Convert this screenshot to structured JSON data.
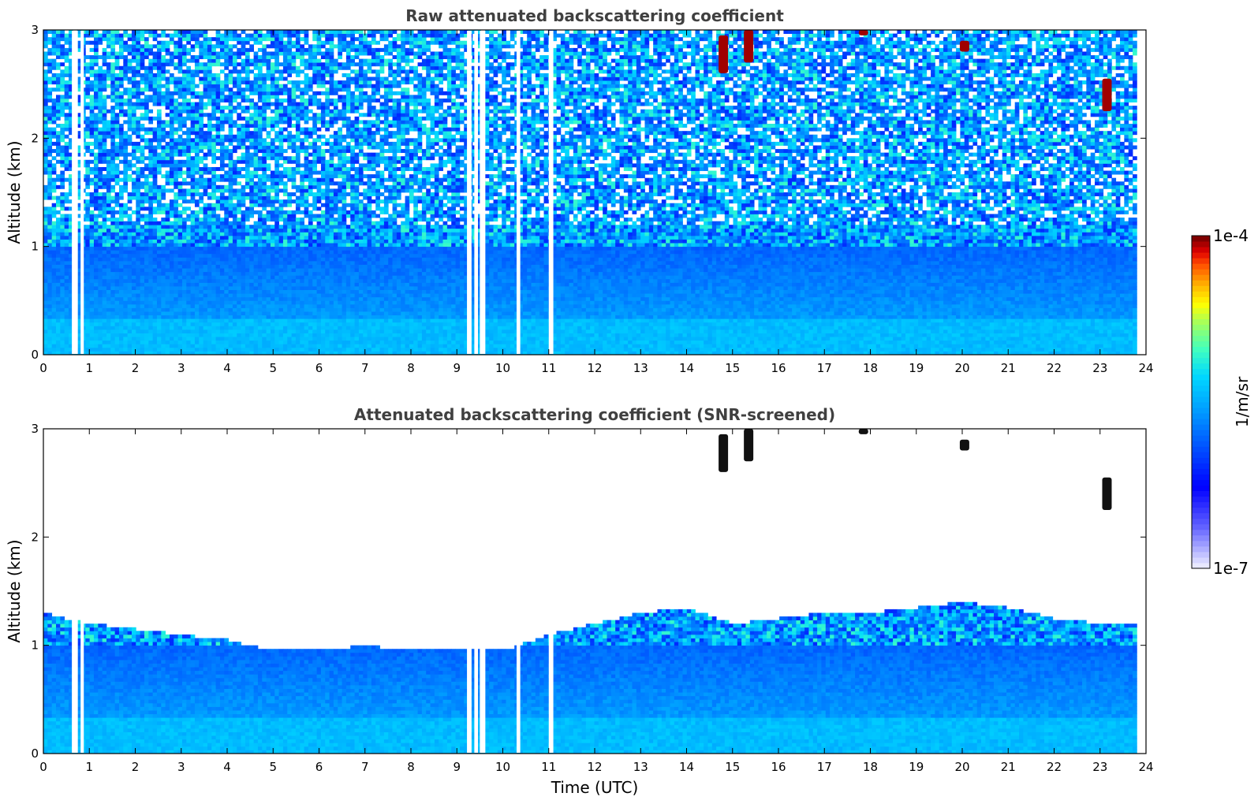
{
  "chart_data": [
    {
      "type": "heatmap",
      "title": "Raw attenuated backscattering coefficient",
      "xlabel": "",
      "ylabel": "Altitude (km)",
      "xlim": [
        0,
        24
      ],
      "ylim": [
        0,
        3
      ],
      "x_ticks": [
        "0",
        "1",
        "2",
        "3",
        "4",
        "5",
        "6",
        "7",
        "8",
        "9",
        "10",
        "11",
        "12",
        "13",
        "14",
        "15",
        "16",
        "17",
        "18",
        "19",
        "20",
        "21",
        "22",
        "23",
        "24"
      ],
      "y_ticks": [
        "0",
        "1",
        "2",
        "3"
      ],
      "data_end_hour": 23.8,
      "data_gaps_hours": [
        [
          0.62,
          0.75
        ],
        [
          0.81,
          0.88
        ],
        [
          9.22,
          9.32
        ],
        [
          9.38,
          9.46
        ],
        [
          9.5,
          9.62
        ],
        [
          10.3,
          10.38
        ],
        [
          11.0,
          11.1
        ]
      ],
      "cloud_patches": [
        {
          "t": 14.8,
          "h_min": 2.6,
          "h_max": 2.95
        },
        {
          "t": 15.35,
          "h_min": 2.7,
          "h_max": 3.0
        },
        {
          "t": 17.85,
          "h_min": 2.95,
          "h_max": 3.0
        },
        {
          "t": 20.05,
          "h_min": 2.8,
          "h_max": 2.9
        },
        {
          "t": 23.15,
          "h_min": 2.25,
          "h_max": 2.55
        }
      ]
    },
    {
      "type": "heatmap",
      "title": "Attenuated backscattering coefficient (SNR-screened)",
      "xlabel": "Time (UTC)",
      "ylabel": "Altitude (km)",
      "xlim": [
        0,
        24
      ],
      "ylim": [
        0,
        3
      ],
      "x_ticks": [
        "0",
        "1",
        "2",
        "3",
        "4",
        "5",
        "6",
        "7",
        "8",
        "9",
        "10",
        "11",
        "12",
        "13",
        "14",
        "15",
        "16",
        "17",
        "18",
        "19",
        "20",
        "21",
        "22",
        "23",
        "24"
      ],
      "y_ticks": [
        "0",
        "1",
        "2",
        "3"
      ],
      "data_end_hour": 23.8,
      "boundary_layer_top_km": {
        "hours": [
          0,
          1,
          2,
          3,
          4,
          5,
          6,
          7,
          8,
          9,
          10,
          11,
          12,
          13,
          14,
          15,
          16,
          17,
          18,
          19,
          20,
          21,
          22,
          23,
          23.8
        ],
        "heights": [
          1.3,
          1.2,
          1.15,
          1.1,
          1.05,
          0.95,
          0.95,
          1.0,
          0.95,
          0.95,
          0.95,
          1.1,
          1.2,
          1.3,
          1.35,
          1.2,
          1.25,
          1.3,
          1.3,
          1.35,
          1.4,
          1.35,
          1.25,
          1.2,
          1.2
        ]
      }
    }
  ],
  "colorbar": {
    "label": "1/m/sr",
    "max_label": "1e-4",
    "min_label": "1e-7",
    "colors": [
      "#e8e8ff",
      "#b0b0ff",
      "#6060ff",
      "#0000ff",
      "#0050ff",
      "#00a0ff",
      "#00d8ff",
      "#40ffc0",
      "#a0ff60",
      "#ffff00",
      "#ffb000",
      "#ff5000",
      "#e00000",
      "#800000"
    ]
  }
}
